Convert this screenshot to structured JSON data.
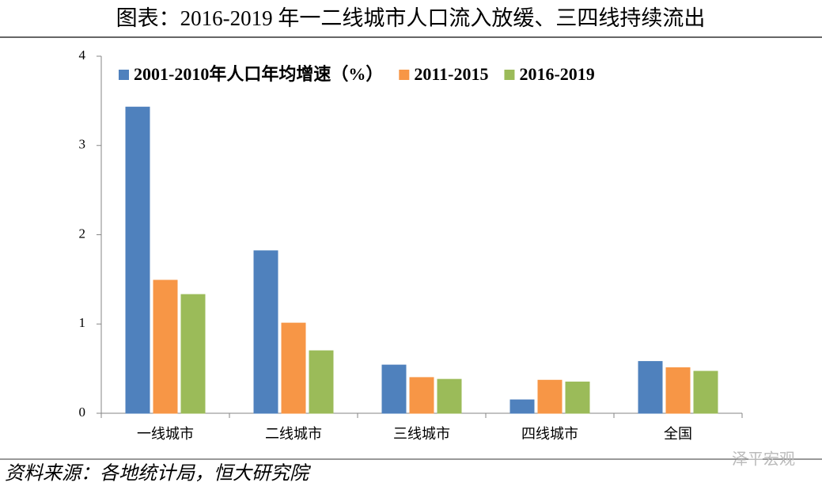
{
  "chart_data": {
    "type": "bar",
    "title": "图表：2016-2019 年一二线城市人口流入放缓、三四线持续流出",
    "categories": [
      "一线城市",
      "二线城市",
      "三线城市",
      "四线城市",
      "全国"
    ],
    "series": [
      {
        "name": "2001-2010年人口年均增速（%）",
        "color": "#4f81bd",
        "values": [
          3.43,
          1.82,
          0.54,
          0.15,
          0.58
        ]
      },
      {
        "name": "2011-2015",
        "color": "#f79646",
        "values": [
          1.49,
          1.01,
          0.4,
          0.37,
          0.51
        ]
      },
      {
        "name": "2016-2019",
        "color": "#9bbb59",
        "values": [
          1.33,
          0.7,
          0.38,
          0.35,
          0.47
        ]
      }
    ],
    "ylim": [
      0,
      4
    ],
    "yticks": [
      0,
      1,
      2,
      3,
      4
    ],
    "grid": false,
    "legend": "top",
    "source": "资料来源：各地统计局，恒大研究院",
    "watermark": "泽平宏观"
  }
}
